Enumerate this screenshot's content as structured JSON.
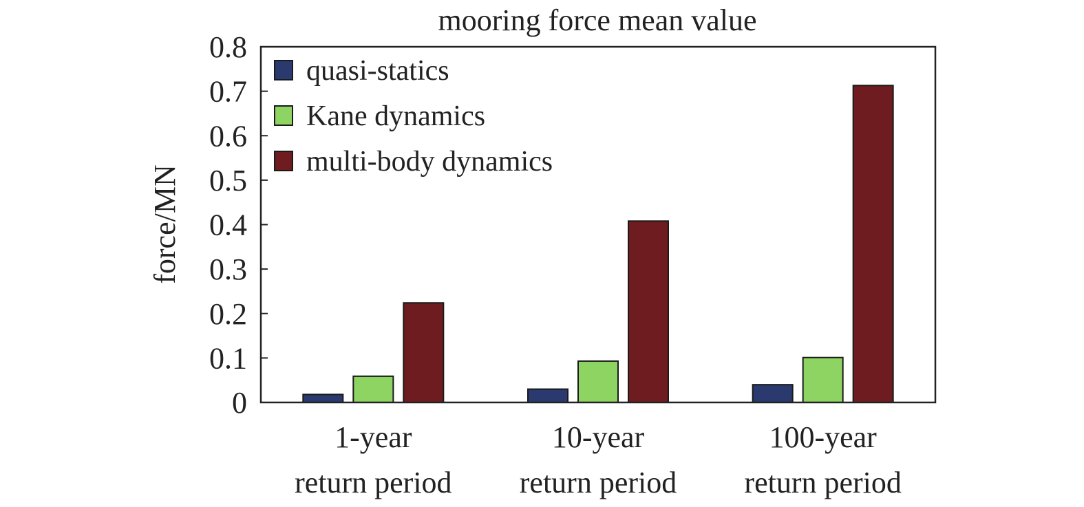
{
  "chart_data": {
    "type": "bar",
    "title": "mooring force mean value",
    "xlabel": "",
    "ylabel": "force/MN",
    "categories": [
      [
        "1-year",
        "return period"
      ],
      [
        "10-year",
        "return period"
      ],
      [
        "100-year",
        "return period"
      ]
    ],
    "series": [
      {
        "name": "quasi-statics",
        "color": "#2b3a6e",
        "values": [
          0.018,
          0.03,
          0.04
        ]
      },
      {
        "name": "Kane dynamics",
        "color": "#8ed462",
        "values": [
          0.059,
          0.093,
          0.101
        ]
      },
      {
        "name": "multi-body dynamics",
        "color": "#6e1c20",
        "values": [
          0.224,
          0.408,
          0.713
        ]
      }
    ],
    "ylim": [
      0,
      0.8
    ],
    "yticks": [
      0,
      0.1,
      0.2,
      0.3,
      0.4,
      0.5,
      0.6,
      0.7,
      0.8
    ],
    "ytick_labels": [
      "0",
      "0.1",
      "0.2",
      "0.3",
      "0.4",
      "0.5",
      "0.6",
      "0.7",
      "0.8"
    ],
    "grid": false,
    "legend_position": "top-left"
  }
}
